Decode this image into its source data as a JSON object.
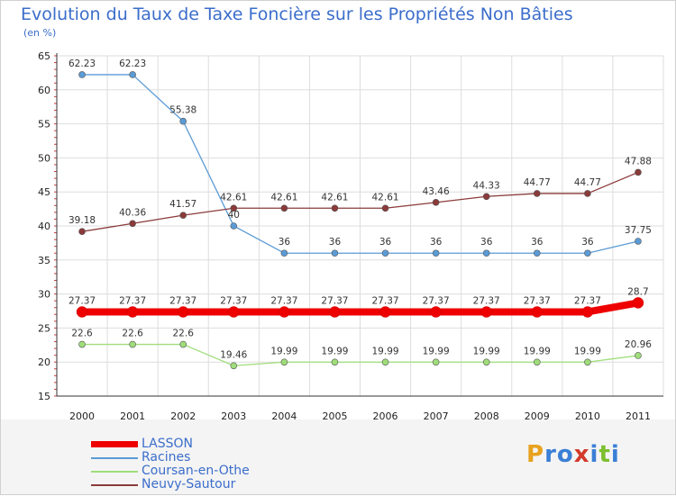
{
  "header": {
    "title": "Evolution du Taux de Taxe Foncière sur les Propriétés Non Bâties",
    "subtitle": "(en %)"
  },
  "logo": {
    "text": "Proxiti",
    "colors": [
      "#e8a21f",
      "#3b7fd6",
      "#3b7fd6",
      "#d23a2a",
      "#3b7fd6",
      "#7cbf2f",
      "#3b7fd6"
    ]
  },
  "chart_data": {
    "type": "line",
    "x": [
      "2000",
      "2001",
      "2002",
      "2003",
      "2004",
      "2005",
      "2006",
      "2007",
      "2008",
      "2009",
      "2010",
      "2011"
    ],
    "ylim": [
      15,
      65
    ],
    "yticks": [
      "15",
      "20",
      "25",
      "30",
      "35",
      "40",
      "45",
      "50",
      "55",
      "60",
      "65"
    ],
    "grid": true,
    "legend_position": "bottom-left",
    "series": [
      {
        "name": "LASSON",
        "color": "#ee0000",
        "width": 8,
        "marker": 6,
        "values": [
          27.37,
          27.37,
          27.37,
          27.37,
          27.37,
          27.37,
          27.37,
          27.37,
          27.37,
          27.37,
          27.37,
          28.7
        ],
        "labels": [
          "27.37",
          "27.37",
          "27.37",
          "27.37",
          "27.37",
          "27.37",
          "27.37",
          "27.37",
          "27.37",
          "27.37",
          "27.37",
          "28.7"
        ]
      },
      {
        "name": "Racines",
        "color": "#5b9bd5",
        "width": 1.3,
        "marker": 3.5,
        "values": [
          62.23,
          62.23,
          55.38,
          40,
          36,
          36,
          36,
          36,
          36,
          36,
          36,
          37.75
        ],
        "labels": [
          "62.23",
          "62.23",
          "55.38",
          "40",
          "36",
          "36",
          "36",
          "36",
          "36",
          "36",
          "36",
          "37.75"
        ]
      },
      {
        "name": "Coursan-en-Othe",
        "color": "#9fdd7a",
        "width": 1.3,
        "marker": 3.5,
        "values": [
          22.6,
          22.6,
          22.6,
          19.46,
          19.99,
          19.99,
          19.99,
          19.99,
          19.99,
          19.99,
          19.99,
          20.96
        ],
        "labels": [
          "22.6",
          "22.6",
          "22.6",
          "19.46",
          "19.99",
          "19.99",
          "19.99",
          "19.99",
          "19.99",
          "19.99",
          "19.99",
          "20.96"
        ]
      },
      {
        "name": "Neuvy-Sautour",
        "color": "#8b3a3a",
        "width": 1.3,
        "marker": 3.5,
        "values": [
          39.18,
          40.36,
          41.57,
          42.61,
          42.61,
          42.61,
          42.61,
          43.46,
          44.33,
          44.77,
          44.77,
          47.88
        ],
        "labels": [
          "39.18",
          "40.36",
          "41.57",
          "42.61",
          "42.61",
          "42.61",
          "42.61",
          "43.46",
          "44.33",
          "44.77",
          "44.77",
          "47.88"
        ]
      }
    ]
  }
}
